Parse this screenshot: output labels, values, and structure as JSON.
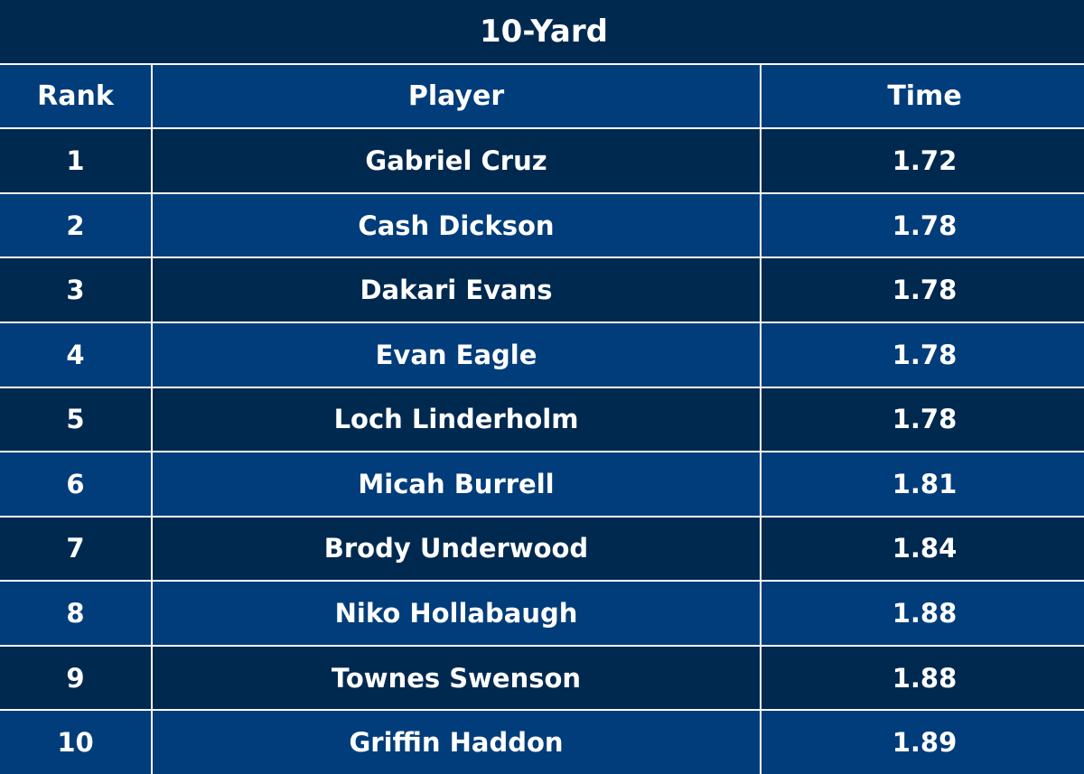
{
  "table": {
    "title": "10-Yard",
    "header": [
      "Rank",
      "Player",
      "Time"
    ],
    "rows": [
      [
        1,
        "Gabriel Cruz",
        1.72
      ],
      [
        2,
        "Cash Dickson",
        1.78
      ],
      [
        3,
        "Dakari Evans",
        1.78
      ],
      [
        4,
        "Evan Eagle",
        1.78
      ],
      [
        5,
        "Loch Linderholm",
        1.78
      ],
      [
        6,
        "Micah Burrell",
        1.81
      ],
      [
        7,
        "Brody Underwood",
        1.84
      ],
      [
        8,
        "Niko Hollabaugh",
        1.88
      ],
      [
        9,
        "Townes Swenson",
        1.88
      ],
      [
        10,
        "Griffin Haddon",
        1.89
      ]
    ]
  }
}
